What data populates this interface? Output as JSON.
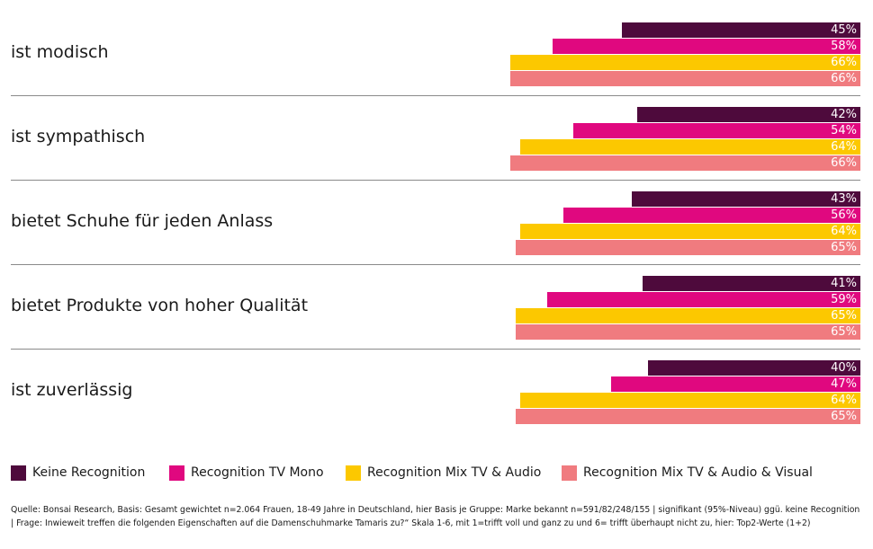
{
  "chart_data": {
    "type": "bar",
    "orientation": "horizontal",
    "categories": [
      "ist modisch",
      "ist sympathisch",
      "bietet Schuhe für jeden Anlass",
      "bietet Produkte von hoher Qualität",
      "ist zuverlässig"
    ],
    "series": [
      {
        "name": "Keine Recognition",
        "color": "#4e0a3c",
        "values": [
          45,
          42,
          43,
          41,
          40
        ]
      },
      {
        "name": "Recognition TV Mono",
        "color": "#e0087f",
        "values": [
          58,
          54,
          56,
          59,
          47
        ]
      },
      {
        "name": "Recognition Mix TV & Audio",
        "color": "#fcc800",
        "values": [
          66,
          64,
          64,
          65,
          64
        ]
      },
      {
        "name": "Recognition Mix TV & Audio & Visual",
        "color": "#f07b7f",
        "values": [
          66,
          66,
          65,
          65,
          65
        ]
      }
    ],
    "value_suffix": "%",
    "bar_alignment": "right",
    "legend_position": "bottom",
    "grid": false
  },
  "footnote": "Quelle: Bonsai Research, Basis: Gesamt gewichtet n=2.064 Frauen, 18-49 Jahre in Deutschland, hier Basis je Gruppe: Marke bekannt n=591/82/248/155 | signifikant (95%-Niveau) ggü. keine Recognition | Frage: Inwieweit treffen die folgenden Eigenschaften auf die Damenschuhmarke Tamaris zu?“ Skala 1-6, mit 1=trifft voll und ganz zu und 6= trifft überhaupt nicht zu, hier: Top2-Werte (1+2)"
}
